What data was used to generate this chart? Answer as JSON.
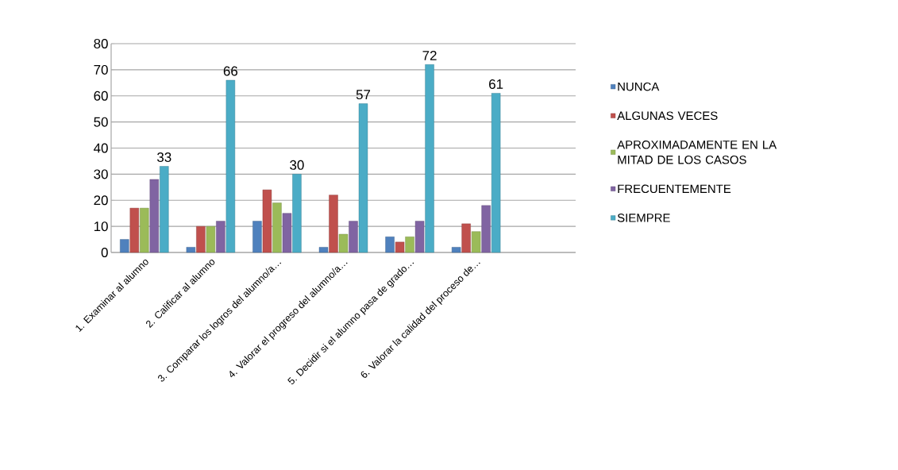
{
  "chart_data": {
    "type": "bar",
    "categories": [
      "1. Examinar al alumno",
      "2. Calificar al alumno",
      "3. Comparar los logros del alumno/a…",
      "4. Valorar el progreso del alumno/a…",
      "5. Decidir si el alumno pasa de grado…",
      "6. Valorar la calidad del proceso de…",
      null
    ],
    "series": [
      {
        "name": "NUNCA",
        "color": "#4f81bd",
        "values": [
          5,
          2,
          12,
          2,
          6,
          2,
          null
        ]
      },
      {
        "name": "ALGUNAS VECES",
        "color": "#c0504d",
        "values": [
          17,
          10,
          24,
          22,
          4,
          11,
          null
        ]
      },
      {
        "name": "APROXIMADAMENTE EN LA MITAD DE LOS CASOS",
        "color": "#9bbb59",
        "values": [
          17,
          10,
          19,
          7,
          6,
          8,
          null
        ]
      },
      {
        "name": "FRECUENTEMENTE",
        "color": "#8064a2",
        "values": [
          28,
          12,
          15,
          12,
          12,
          18,
          null
        ]
      },
      {
        "name": "SIEMPRE",
        "color": "#4bacc6",
        "values": [
          33,
          66,
          30,
          57,
          72,
          61,
          null
        ],
        "value_labels": [
          "33",
          "66",
          "30",
          "57",
          "72",
          "61",
          null
        ]
      }
    ],
    "ylim": [
      0,
      80
    ],
    "yticks": [
      0,
      10,
      20,
      30,
      40,
      50,
      60,
      70,
      80
    ],
    "grid": "y",
    "legend": "right"
  }
}
